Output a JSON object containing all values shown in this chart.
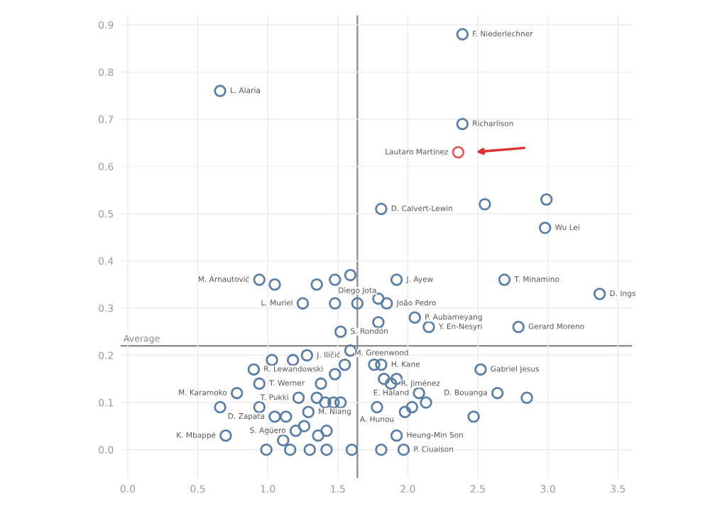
{
  "chart_data": {
    "type": "scatter",
    "x": [
      0.66,
      2.39,
      2.39,
      2.36,
      1.81,
      2.55,
      2.99,
      2.98,
      0.94,
      1.05,
      1.25,
      1.35,
      1.48,
      1.59,
      1.48,
      1.64,
      1.52,
      1.92,
      1.79,
      1.85,
      2.69,
      3.37,
      2.05,
      2.15,
      2.79,
      1.79,
      1.28,
      1.18,
      1.03,
      1.59,
      0.9,
      1.55,
      1.48,
      0.94,
      1.38,
      0.78,
      1.22,
      1.35,
      1.41,
      1.47,
      1.52,
      0.66,
      0.94,
      1.05,
      1.13,
      1.29,
      1.2,
      1.26,
      1.42,
      0.7,
      1.11,
      1.36,
      0.99,
      1.16,
      1.3,
      1.42,
      1.6,
      1.76,
      1.81,
      1.83,
      1.88,
      1.92,
      2.52,
      2.08,
      2.13,
      2.03,
      1.98,
      1.78,
      2.64,
      2.85,
      2.47,
      1.92,
      1.81,
      1.97
    ],
    "values": [
      0.76,
      0.88,
      0.69,
      0.63,
      0.51,
      0.52,
      0.53,
      0.47,
      0.36,
      0.35,
      0.31,
      0.35,
      0.36,
      0.37,
      0.31,
      0.31,
      0.25,
      0.36,
      0.32,
      0.31,
      0.36,
      0.33,
      0.28,
      0.26,
      0.26,
      0.27,
      0.2,
      0.19,
      0.19,
      0.21,
      0.17,
      0.18,
      0.16,
      0.14,
      0.14,
      0.12,
      0.11,
      0.11,
      0.1,
      0.1,
      0.1,
      0.09,
      0.09,
      0.07,
      0.07,
      0.08,
      0.04,
      0.05,
      0.04,
      0.03,
      0.02,
      0.03,
      0.0,
      0.0,
      0.0,
      0.0,
      0.0,
      0.18,
      0.18,
      0.15,
      0.14,
      0.15,
      0.17,
      0.12,
      0.1,
      0.09,
      0.08,
      0.09,
      0.12,
      0.11,
      0.07,
      0.03,
      0.0,
      0.0
    ],
    "color": "#5b7fa6",
    "colors": [
      "#5b7fa6",
      "#5b7fa6",
      "#5b7fa6",
      "#e05a5a",
      "#5b7fa6",
      "#5b7fa6",
      "#5b7fa6",
      "#5b7fa6",
      "#5b7fa6",
      "#5b7fa6",
      "#5b7fa6",
      "#5b7fa6",
      "#5b7fa6",
      "#5b7fa6",
      "#5b7fa6",
      "#5b7fa6",
      "#5b7fa6",
      "#5b7fa6",
      "#5b7fa6",
      "#5b7fa6",
      "#5b7fa6",
      "#5b7fa6",
      "#5b7fa6",
      "#5b7fa6",
      "#5b7fa6",
      "#5b7fa6",
      "#5b7fa6",
      "#5b7fa6",
      "#5b7fa6",
      "#5b7fa6",
      "#5b7fa6",
      "#5b7fa6",
      "#5b7fa6",
      "#5b7fa6",
      "#5b7fa6",
      "#5b7fa6",
      "#5b7fa6",
      "#5b7fa6",
      "#5b7fa6",
      "#5b7fa6",
      "#5b7fa6",
      "#5b7fa6",
      "#5b7fa6",
      "#5b7fa6",
      "#5b7fa6",
      "#5b7fa6",
      "#5b7fa6",
      "#5b7fa6",
      "#5b7fa6",
      "#5b7fa6",
      "#5b7fa6",
      "#5b7fa6",
      "#5b7fa6",
      "#5b7fa6",
      "#5b7fa6",
      "#5b7fa6",
      "#5b7fa6",
      "#5b7fa6",
      "#5b7fa6",
      "#5b7fa6",
      "#5b7fa6",
      "#5b7fa6",
      "#5b7fa6",
      "#5b7fa6",
      "#5b7fa6",
      "#5b7fa6",
      "#5b7fa6",
      "#5b7fa6",
      "#5b7fa6",
      "#5b7fa6",
      "#5b7fa6",
      "#5b7fa6",
      "#5b7fa6",
      "#5b7fa6"
    ],
    "marker": "circle",
    "xlim": [
      -0.05,
      3.6
    ],
    "ylim": [
      -0.06,
      0.92
    ],
    "xticks": [
      {
        "value": 0,
        "label": "0.0"
      },
      0.5,
      {
        "value": 1,
        "label": "1.0"
      },
      1.5,
      {
        "value": 2,
        "label": "2.0"
      },
      2.5,
      {
        "value": 3,
        "label": "3.0"
      },
      3.5
    ],
    "yticks": [
      {
        "value": 0,
        "label": "0.0"
      },
      0.1,
      0.2,
      0.3,
      0.4,
      0.5,
      0.6,
      0.7,
      0.8,
      0.9
    ],
    "grid": true,
    "ref_lines": [
      {
        "axis": "y",
        "value": 0.22,
        "label": "Average",
        "color": "#888888"
      },
      {
        "axis": "x",
        "value": 1.64,
        "label": null,
        "color": "#888888"
      }
    ],
    "annotations": [
      {
        "text": "L. Alaria",
        "x": 0.66,
        "y": 0.76
      },
      {
        "text": "F. Niederlechner",
        "x": 2.39,
        "y": 0.88
      },
      {
        "text": "Richarlison",
        "x": 2.39,
        "y": 0.69
      },
      {
        "text": "Lautaro Martinez",
        "x": 2.36,
        "y": 0.63
      },
      {
        "text": "D. Calvert-Lewin",
        "x": 1.81,
        "y": 0.51
      },
      {
        "text": "Wu Lei",
        "x": 2.98,
        "y": 0.47
      },
      {
        "text": "M. Arnautović",
        "x": 0.94,
        "y": 0.36
      },
      {
        "text": "L. Muriel",
        "x": 1.25,
        "y": 0.31
      },
      {
        "text": "Diego Jota",
        "x": 1.64,
        "y": 0.31
      },
      {
        "text": "S. Rondón",
        "x": 1.52,
        "y": 0.25
      },
      {
        "text": "J. Ayew",
        "x": 1.92,
        "y": 0.36
      },
      {
        "text": "João Pedro",
        "x": 1.85,
        "y": 0.31
      },
      {
        "text": "T. Minamino",
        "x": 2.69,
        "y": 0.36
      },
      {
        "text": "D. Ings",
        "x": 3.37,
        "y": 0.33
      },
      {
        "text": "P. Aubameyang",
        "x": 2.05,
        "y": 0.28
      },
      {
        "text": "Y. En-Nesyri",
        "x": 2.15,
        "y": 0.26
      },
      {
        "text": "Gerard Moreno",
        "x": 2.79,
        "y": 0.26
      },
      {
        "text": "J. Iličić",
        "x": 1.28,
        "y": 0.2
      },
      {
        "text": "R. Lewandowski",
        "x": 0.9,
        "y": 0.17
      },
      {
        "text": "M. Greenwood",
        "x": 1.55,
        "y": 0.18
      },
      {
        "text": "T. Werner",
        "x": 0.94,
        "y": 0.14
      },
      {
        "text": "M. Karamoko",
        "x": 0.78,
        "y": 0.12
      },
      {
        "text": "T. Pukki",
        "x": 1.22,
        "y": 0.11
      },
      {
        "text": "D. Zapata",
        "x": 1.05,
        "y": 0.07
      },
      {
        "text": "M. Niang",
        "x": 1.29,
        "y": 0.08
      },
      {
        "text": "S. Agüero",
        "x": 1.2,
        "y": 0.04
      },
      {
        "text": "K. Mbappé",
        "x": 0.7,
        "y": 0.03
      },
      {
        "text": "H. Kane",
        "x": 1.81,
        "y": 0.18
      },
      {
        "text": "R. Jiménez",
        "x": 1.88,
        "y": 0.14
      },
      {
        "text": "Gabriel Jesus",
        "x": 2.52,
        "y": 0.17
      },
      {
        "text": "D. Bouanga",
        "x": 2.64,
        "y": 0.12
      },
      {
        "text": "E. Håland",
        "x": 2.08,
        "y": 0.12
      },
      {
        "text": "A. Hunou",
        "x": 1.78,
        "y": 0.09
      },
      {
        "text": "Heung-Min Son",
        "x": 1.92,
        "y": 0.03
      },
      {
        "text": "P. Ciuaison",
        "x": 1.97,
        "y": 0.0
      }
    ]
  }
}
